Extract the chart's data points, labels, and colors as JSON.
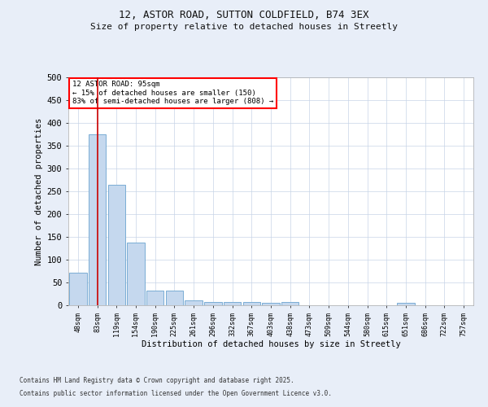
{
  "title_line1": "12, ASTOR ROAD, SUTTON COLDFIELD, B74 3EX",
  "title_line2": "Size of property relative to detached houses in Streetly",
  "xlabel": "Distribution of detached houses by size in Streetly",
  "ylabel": "Number of detached properties",
  "bar_color": "#c5d8ee",
  "bar_edge_color": "#7aadd4",
  "categories": [
    "48sqm",
    "83sqm",
    "119sqm",
    "154sqm",
    "190sqm",
    "225sqm",
    "261sqm",
    "296sqm",
    "332sqm",
    "367sqm",
    "403sqm",
    "438sqm",
    "473sqm",
    "509sqm",
    "544sqm",
    "580sqm",
    "615sqm",
    "651sqm",
    "686sqm",
    "722sqm",
    "757sqm"
  ],
  "values": [
    72,
    375,
    265,
    137,
    33,
    33,
    10,
    8,
    8,
    8,
    5,
    8,
    0,
    0,
    0,
    0,
    0,
    5,
    0,
    0,
    0
  ],
  "ylim": [
    0,
    500
  ],
  "yticks": [
    0,
    50,
    100,
    150,
    200,
    250,
    300,
    350,
    400,
    450,
    500
  ],
  "vline_x": 1.0,
  "vline_color": "#cc0000",
  "annotation_text": "12 ASTOR ROAD: 95sqm\n← 15% of detached houses are smaller (150)\n83% of semi-detached houses are larger (808) →",
  "bg_color": "#e8eef8",
  "plot_bg_color": "#ffffff",
  "footer_line1": "Contains HM Land Registry data © Crown copyright and database right 2025.",
  "footer_line2": "Contains public sector information licensed under the Open Government Licence v3.0.",
  "grid_color": "#c8d4e8"
}
